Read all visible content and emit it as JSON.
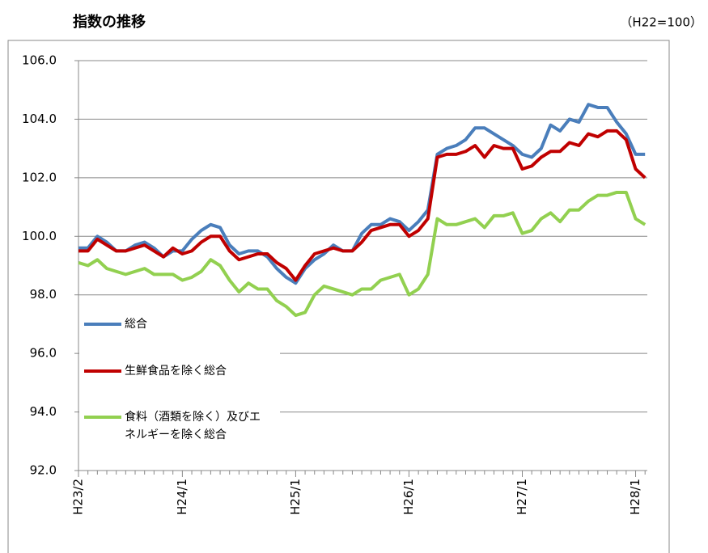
{
  "chart_data": {
    "type": "line",
    "title": "指数の推移",
    "subtitle": "（H22=100）",
    "categories": [
      "H23/2",
      null,
      null,
      null,
      null,
      null,
      null,
      null,
      null,
      null,
      null,
      "H24/1",
      null,
      null,
      null,
      null,
      null,
      null,
      null,
      null,
      null,
      null,
      null,
      "H25/1",
      null,
      null,
      null,
      null,
      null,
      null,
      null,
      null,
      null,
      null,
      null,
      "H26/1",
      null,
      null,
      null,
      null,
      null,
      null,
      null,
      null,
      null,
      null,
      null,
      "H27/1",
      null,
      null,
      null,
      null,
      null,
      null,
      null,
      null,
      null,
      null,
      null,
      "H28/1",
      null
    ],
    "series": [
      {
        "name": "総合",
        "color": "#4a7ebb",
        "values": [
          99.6,
          99.6,
          100.0,
          99.8,
          99.5,
          99.5,
          99.7,
          99.8,
          99.6,
          99.3,
          99.5,
          99.5,
          99.9,
          100.2,
          100.4,
          100.3,
          99.7,
          99.4,
          99.5,
          99.5,
          99.3,
          98.9,
          98.6,
          98.4,
          98.9,
          99.2,
          99.4,
          99.7,
          99.5,
          99.5,
          100.1,
          100.4,
          100.4,
          100.6,
          100.5,
          100.2,
          100.5,
          100.9,
          102.8,
          103.0,
          103.1,
          103.3,
          103.7,
          103.7,
          103.5,
          103.3,
          103.1,
          102.8,
          102.7,
          103.0,
          103.8,
          103.6,
          104.0,
          103.9,
          104.5,
          104.4,
          104.4,
          103.9,
          103.5,
          102.8,
          102.8
        ]
      },
      {
        "name": "生鮮食品を除く総合",
        "color": "#c00000",
        "values": [
          99.5,
          99.5,
          99.9,
          99.7,
          99.5,
          99.5,
          99.6,
          99.7,
          99.5,
          99.3,
          99.6,
          99.4,
          99.5,
          99.8,
          100.0,
          100.0,
          99.5,
          99.2,
          99.3,
          99.4,
          99.4,
          99.1,
          98.9,
          98.5,
          99.0,
          99.4,
          99.5,
          99.6,
          99.5,
          99.5,
          99.8,
          100.2,
          100.3,
          100.4,
          100.4,
          100.0,
          100.2,
          100.6,
          102.7,
          102.8,
          102.8,
          102.9,
          103.1,
          102.7,
          103.1,
          103.0,
          103.0,
          102.3,
          102.4,
          102.7,
          102.9,
          102.9,
          103.2,
          103.1,
          103.5,
          103.4,
          103.6,
          103.6,
          103.3,
          102.3,
          102.0
        ]
      },
      {
        "name": "食料（酒類を除く）及びエネルギーを除く総合",
        "color": "#92d050",
        "values": [
          99.1,
          99.0,
          99.2,
          98.9,
          98.8,
          98.7,
          98.8,
          98.9,
          98.7,
          98.7,
          98.7,
          98.5,
          98.6,
          98.8,
          99.2,
          99.0,
          98.5,
          98.1,
          98.4,
          98.2,
          98.2,
          97.8,
          97.6,
          97.3,
          97.4,
          98.0,
          98.3,
          98.2,
          98.1,
          98.0,
          98.2,
          98.2,
          98.5,
          98.6,
          98.7,
          98.0,
          98.2,
          98.7,
          100.6,
          100.4,
          100.4,
          100.5,
          100.6,
          100.3,
          100.7,
          100.7,
          100.8,
          100.1,
          100.2,
          100.6,
          100.8,
          100.5,
          100.9,
          100.9,
          101.2,
          101.4,
          101.4,
          101.5,
          101.5,
          100.6,
          100.4
        ]
      }
    ],
    "ylim": [
      92,
      106
    ],
    "yticks": [
      {
        "value": 92,
        "label": "92.0"
      },
      {
        "value": 94,
        "label": "94.0"
      },
      {
        "value": 96,
        "label": "96.0"
      },
      {
        "value": 98,
        "label": "98.0"
      },
      {
        "value": 100,
        "label": "100.0"
      },
      {
        "value": 102,
        "label": "102.0"
      },
      {
        "value": 104,
        "label": "104.0"
      },
      {
        "value": 106,
        "label": "106.0"
      }
    ],
    "grid": true,
    "legend": "left"
  }
}
